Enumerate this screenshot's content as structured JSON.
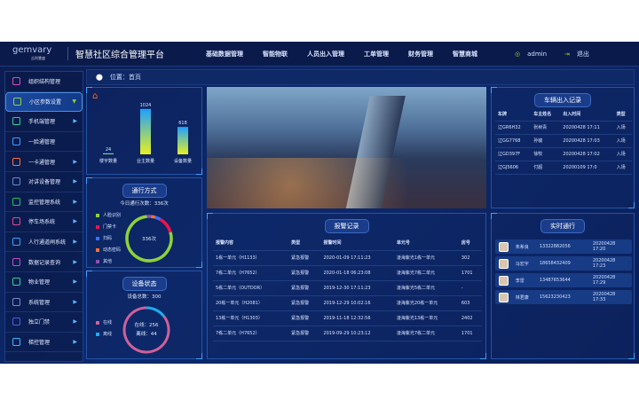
{
  "header": {
    "logo": "gemvary",
    "logo_sub": "吉利慧盛",
    "title": "智慧社区综合管理平台",
    "nav": [
      "基础数据管理",
      "智能物联",
      "人员出入管理",
      "工单管理",
      "财务管理",
      "智慧商城"
    ],
    "user": "admin",
    "logout": "退出"
  },
  "sidebar": {
    "items": [
      {
        "label": "组织结构管理",
        "icon": "org-icon",
        "color": "#d84cc0",
        "arrow": false
      },
      {
        "label": "小区参数设置",
        "icon": "community-icon",
        "color": "#8fd13a",
        "arrow": true,
        "active": true
      },
      {
        "label": "手机端管理",
        "icon": "phone-icon",
        "color": "#2ed39a",
        "arrow": true
      },
      {
        "label": "一脸通管理",
        "icon": "face-icon",
        "color": "#3aa0ff",
        "arrow": false
      },
      {
        "label": "一卡通管理",
        "icon": "card-icon",
        "color": "#ff7040",
        "arrow": true
      },
      {
        "label": "对讲设备管理",
        "icon": "intercom-icon",
        "color": "#6a8ad0",
        "arrow": true
      },
      {
        "label": "监控管理系统",
        "icon": "monitor-icon",
        "color": "#22c060",
        "arrow": true
      },
      {
        "label": "停车场系统",
        "icon": "parking-icon",
        "color": "#e04a90",
        "arrow": true
      },
      {
        "label": "人行通道闸系统",
        "icon": "gate-icon",
        "color": "#3aa0ff",
        "arrow": true
      },
      {
        "label": "数据记录查询",
        "icon": "data-icon",
        "color": "#c050c8",
        "arrow": true
      },
      {
        "label": "物业管理",
        "icon": "property-icon",
        "color": "#2ed39a",
        "arrow": true
      },
      {
        "label": "系统管理",
        "icon": "system-icon",
        "color": "#7a88c8",
        "arrow": true
      },
      {
        "label": "独立门禁",
        "icon": "door-icon",
        "color": "#4a60e0",
        "arrow": true
      },
      {
        "label": "梯控管理",
        "icon": "elevator-icon",
        "color": "#3ab8ff",
        "arrow": true
      }
    ]
  },
  "location": {
    "label": "位置：首页"
  },
  "stats": {
    "bars": [
      {
        "label": "楼宇数量",
        "value": "24",
        "v": 24
      },
      {
        "label": "业主数量",
        "value": "1024",
        "v": 1024
      },
      {
        "label": "设备数量",
        "value": "618",
        "v": 618
      }
    ]
  },
  "passage": {
    "title": "通行方式",
    "total": "今日通行次数：336次",
    "center": "336次",
    "legend": [
      {
        "name": "人脸识别",
        "color": "#8fd13a",
        "share": 0.78
      },
      {
        "name": "门禁卡",
        "color": "#f0134d",
        "share": 0.12
      },
      {
        "name": "扫码",
        "color": "#3a70ff",
        "share": 0.04
      },
      {
        "name": "动态密码",
        "color": "#ff7030",
        "share": 0.03
      },
      {
        "name": "其他",
        "color": "#9050b0",
        "share": 0.03
      }
    ]
  },
  "devices": {
    "title": "设备状态",
    "total": "设备总数：300",
    "online_label": "在线：256",
    "offline_label": "离线：44",
    "online": 256,
    "offline": 44,
    "legend": [
      {
        "name": "在线",
        "color": "#d0609a"
      },
      {
        "name": "离线",
        "color": "#16b0f0"
      }
    ]
  },
  "vehicles": {
    "title": "车辆出入记录",
    "columns": [
      "车牌",
      "车主姓名",
      "出入时间",
      "类型"
    ],
    "rows": [
      [
        "辽GR6H32",
        "张树青",
        "20200428 17:11",
        "入场"
      ],
      [
        "辽GG7768",
        "孙毓",
        "20200428 17:03",
        "入场"
      ],
      [
        "辽GD397F",
        "徐牧",
        "20200428 17:02",
        "入场"
      ],
      [
        "辽GJ5606",
        "付超",
        "20200109 17:0",
        "入场"
      ]
    ]
  },
  "alarms": {
    "title": "报警记录",
    "columns": [
      "报警内容",
      "类型",
      "报警时间",
      "单元号",
      "房号"
    ],
    "rows": [
      [
        "1栋一单元（H1133）",
        "紧急报警",
        "2020-01-09 17:11:23",
        "凌海紫光1栋一单元",
        "302"
      ],
      [
        "7栋二单元（H7652）",
        "紧急报警",
        "2020-01-18 06:23:08",
        "凌海紫光7栋二单元",
        "1701"
      ],
      [
        "5栋二单元（OUTDOR）",
        "紧急报警",
        "2019-12-30 17:11:23",
        "凌海紫光5栋二单元",
        "-"
      ],
      [
        "20栋一单元（H2081）",
        "紧急报警",
        "2019-12-29 10:02:16",
        "凌海紫光20栋一单元",
        "603"
      ],
      [
        "13栋一单元（H1303）",
        "紧急报警",
        "2019-11-18 12:32:56",
        "凌海紫光13栋一单元",
        "2402"
      ],
      [
        "7栋二单元（H7652）",
        "紧急报警",
        "2019-09-29 10:23:12",
        "凌海紫光7栋二单元",
        "1701"
      ]
    ]
  },
  "realtime": {
    "title": "实时通行",
    "rows": [
      [
        "朱希良",
        "13322882056",
        "20200428 17:20"
      ],
      [
        "马宏宇",
        "18658432409",
        "20200428 17:23"
      ],
      [
        "李雷",
        "13487653644",
        "20200428 17:29"
      ],
      [
        "林君康",
        "15623230423",
        "20200428 17:33"
      ]
    ]
  }
}
